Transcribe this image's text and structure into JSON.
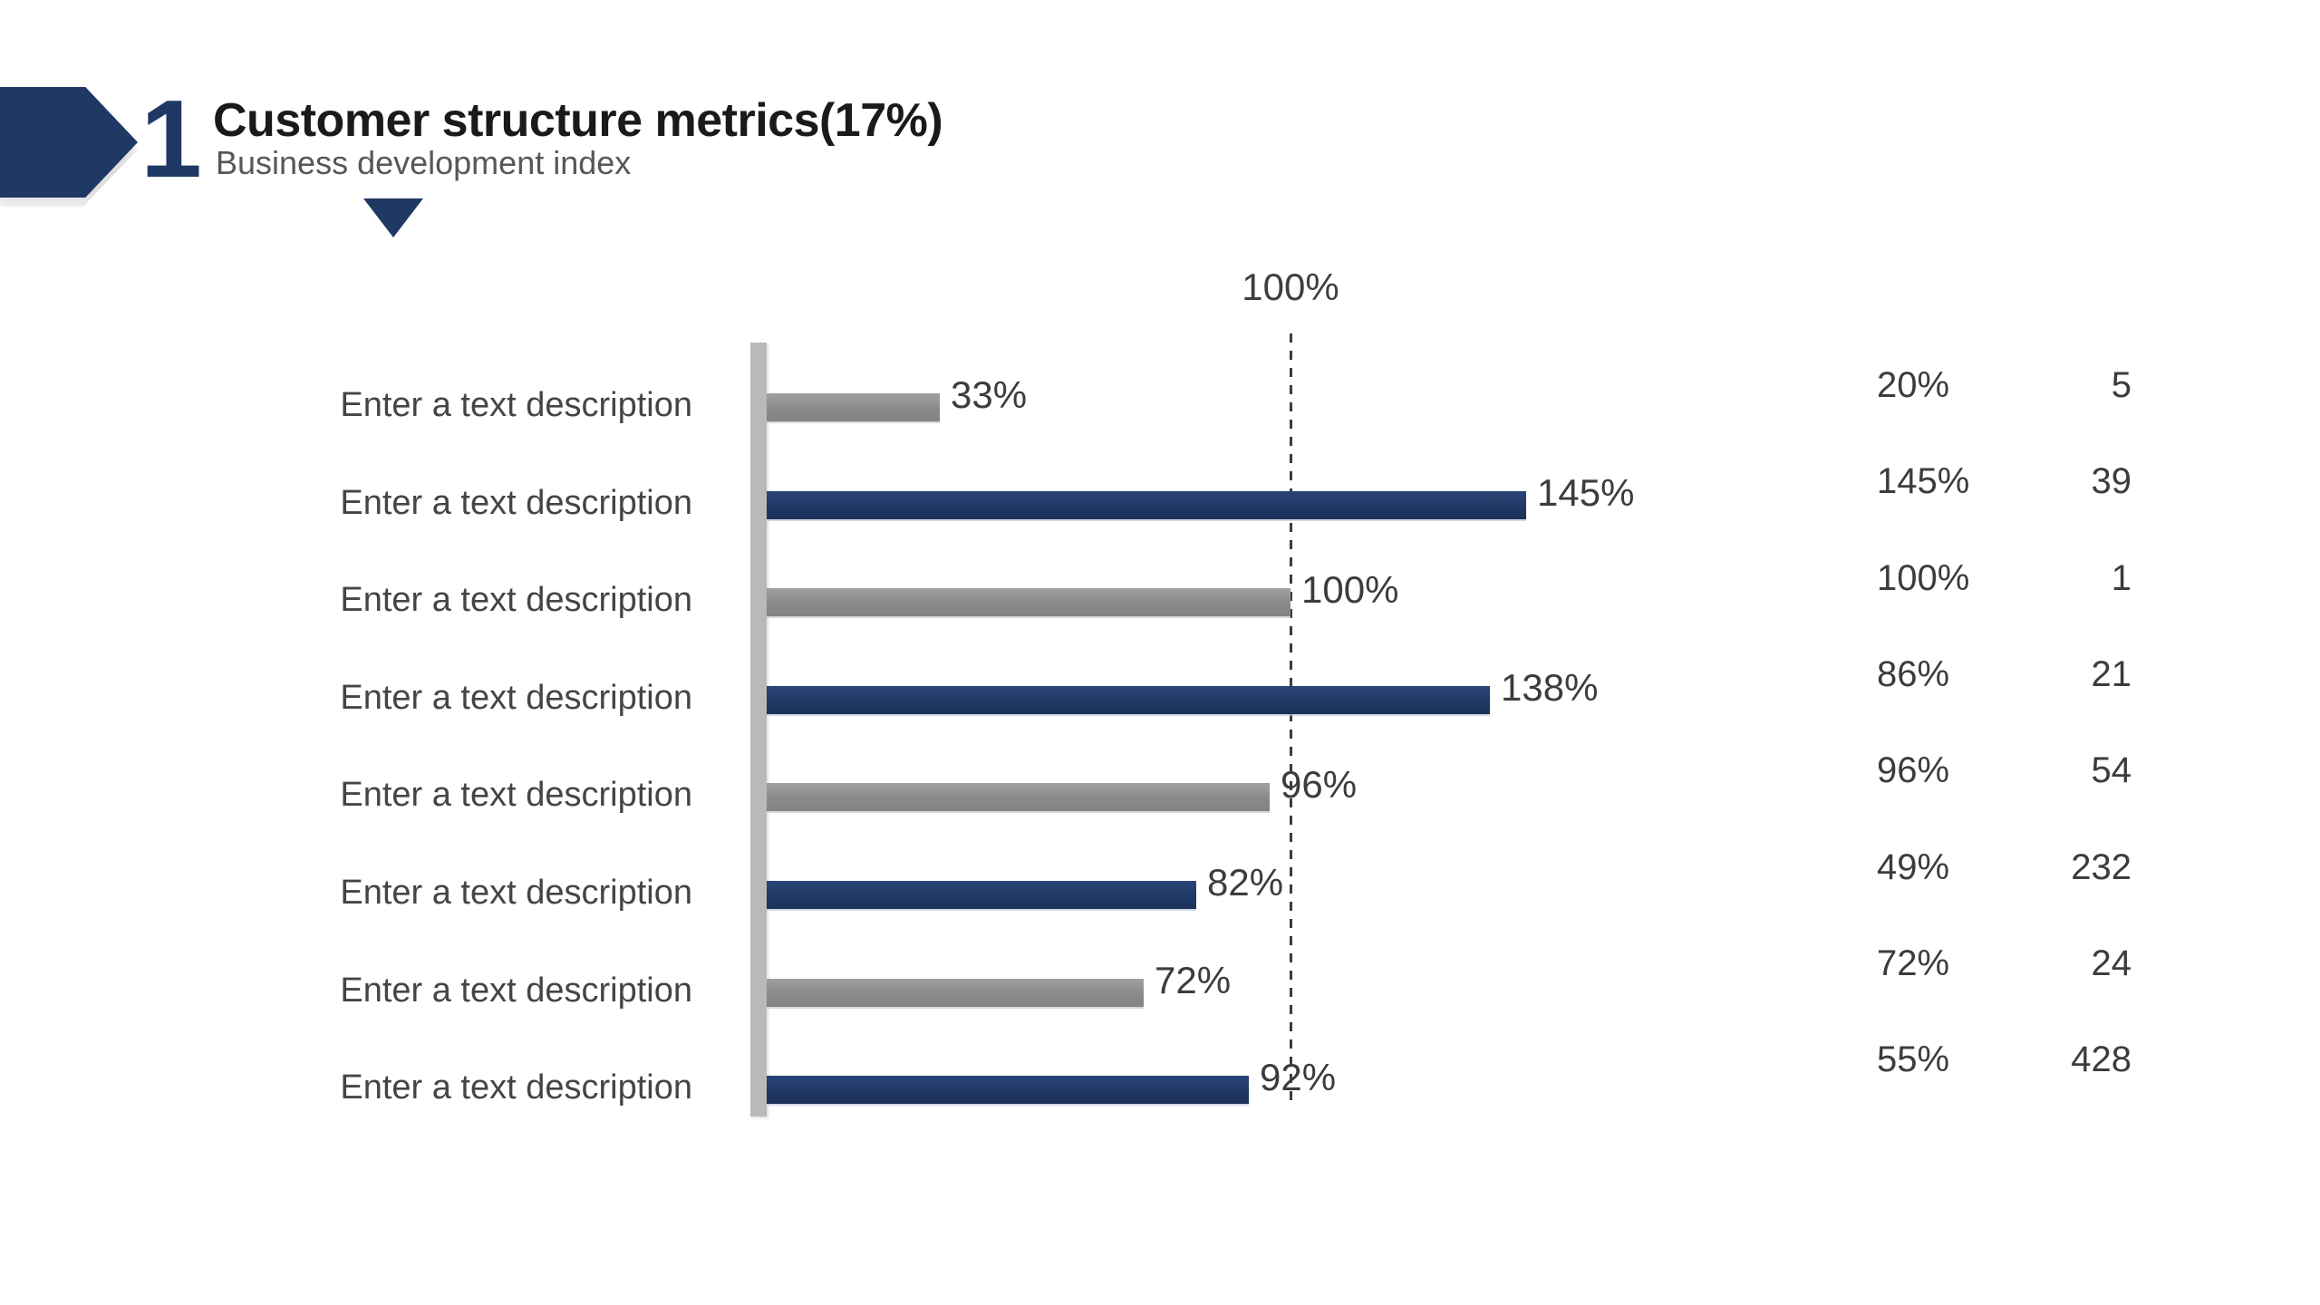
{
  "header": {
    "badge_number": "1",
    "title": "Customer structure metrics(17%)",
    "subtitle": "Business development index"
  },
  "chart_data": {
    "type": "bar",
    "orientation": "horizontal",
    "legend": "none",
    "grid": "off",
    "reference_line": {
      "value": 100,
      "label": "100%"
    },
    "colors": {
      "navy": "#1f3864",
      "gray": "#8c8c8c",
      "axis_gray": "#b9b9b9"
    },
    "rows": [
      {
        "label": "Enter a text description",
        "value": 33,
        "value_label": "33%",
        "color": "gray",
        "side_pct": "20%",
        "side_count": "5"
      },
      {
        "label": "Enter a text description",
        "value": 145,
        "value_label": "145%",
        "color": "navy",
        "side_pct": "145%",
        "side_count": "39"
      },
      {
        "label": "Enter a text description",
        "value": 100,
        "value_label": "100%",
        "color": "gray",
        "side_pct": "100%",
        "side_count": "1"
      },
      {
        "label": "Enter a text description",
        "value": 138,
        "value_label": "138%",
        "color": "navy",
        "side_pct": "86%",
        "side_count": "21"
      },
      {
        "label": "Enter a text description",
        "value": 96,
        "value_label": "96%",
        "color": "gray",
        "side_pct": "96%",
        "side_count": "54"
      },
      {
        "label": "Enter a text description",
        "value": 82,
        "value_label": "82%",
        "color": "navy",
        "side_pct": "49%",
        "side_count": "232"
      },
      {
        "label": "Enter a text description",
        "value": 72,
        "value_label": "72%",
        "color": "gray",
        "side_pct": "72%",
        "side_count": "24"
      },
      {
        "label": "Enter a text description",
        "value": 92,
        "value_label": "92%",
        "color": "navy",
        "side_pct": "55%",
        "side_count": "428"
      }
    ]
  }
}
